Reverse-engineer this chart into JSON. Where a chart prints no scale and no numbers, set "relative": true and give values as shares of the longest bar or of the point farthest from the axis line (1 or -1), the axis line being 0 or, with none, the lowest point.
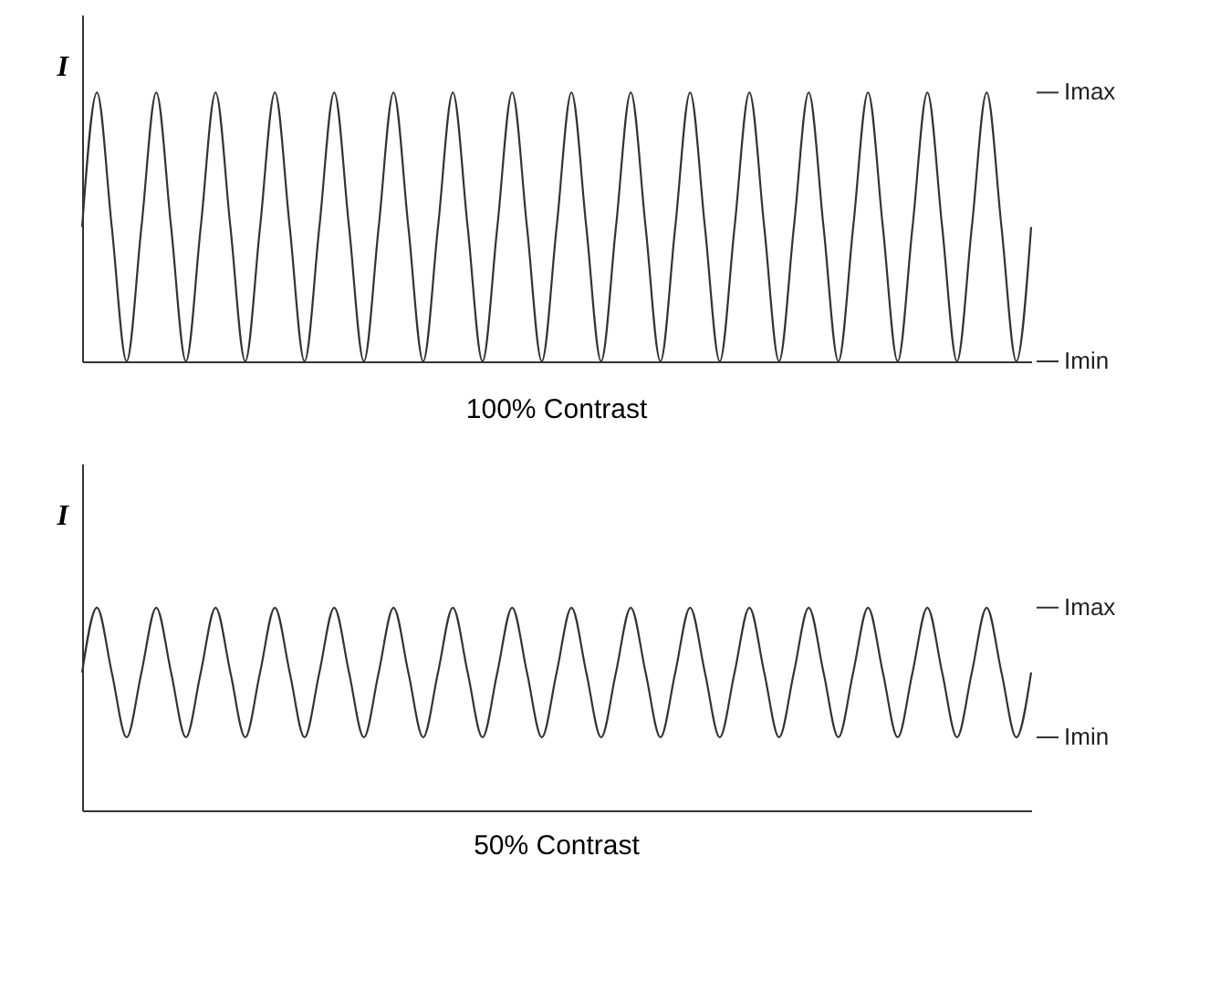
{
  "chart_data": [
    {
      "type": "line",
      "title": "100% Contrast",
      "ylabel": "I",
      "relative": true,
      "tick_labels": false,
      "grid": false,
      "marker": "none",
      "line_style": "solid",
      "categories": [
        null,
        null,
        null,
        null,
        null,
        null,
        null,
        null,
        null,
        null,
        null,
        null,
        null,
        null,
        null,
        null,
        null,
        null,
        null,
        null,
        null,
        null,
        null,
        null,
        null,
        null,
        null,
        null,
        null,
        null,
        null,
        null,
        null,
        null,
        null,
        null,
        null,
        null,
        null,
        null,
        null,
        null,
        null,
        null,
        null,
        null,
        null,
        null,
        null,
        null,
        null,
        null,
        null,
        null,
        null,
        null,
        null,
        null,
        null,
        null,
        null,
        null,
        null,
        null,
        null
      ],
      "series": [
        {
          "color": "#333333",
          "values": [
            0.5,
            1,
            0.5,
            0,
            0.5,
            1,
            0.5,
            0,
            0.5,
            1,
            0.5,
            0,
            0.5,
            1,
            0.5,
            0,
            0.5,
            1,
            0.5,
            0,
            0.5,
            1,
            0.5,
            0,
            0.5,
            1,
            0.5,
            0,
            0.5,
            1,
            0.5,
            0,
            0.5,
            1,
            0.5,
            0,
            0.5,
            1,
            0.5,
            0,
            0.5,
            1,
            0.5,
            0,
            0.5,
            1,
            0.5,
            0,
            0.5,
            1,
            0.5,
            0,
            0.5,
            1,
            0.5,
            0,
            0.5,
            1,
            0.5,
            0,
            0.5,
            1,
            0.5,
            0,
            0.5
          ]
        }
      ],
      "annotations": [
        "Imax",
        "Imin"
      ]
    },
    {
      "type": "line",
      "title": "50% Contrast",
      "ylabel": "I",
      "relative": true,
      "tick_labels": false,
      "grid": false,
      "marker": "none",
      "line_style": "solid",
      "categories": [
        null,
        null,
        null,
        null,
        null,
        null,
        null,
        null,
        null,
        null,
        null,
        null,
        null,
        null,
        null,
        null,
        null,
        null,
        null,
        null,
        null,
        null,
        null,
        null,
        null,
        null,
        null,
        null,
        null,
        null,
        null,
        null,
        null,
        null,
        null,
        null,
        null,
        null,
        null,
        null,
        null,
        null,
        null,
        null,
        null,
        null,
        null,
        null,
        null,
        null,
        null,
        null,
        null,
        null,
        null,
        null,
        null,
        null,
        null,
        null,
        null,
        null,
        null,
        null,
        null
      ],
      "series": [
        {
          "color": "#333333",
          "values": [
            0.68,
            1,
            0.68,
            0.36,
            0.68,
            1,
            0.68,
            0.36,
            0.68,
            1,
            0.68,
            0.36,
            0.68,
            1,
            0.68,
            0.36,
            0.68,
            1,
            0.68,
            0.36,
            0.68,
            1,
            0.68,
            0.36,
            0.68,
            1,
            0.68,
            0.36,
            0.68,
            1,
            0.68,
            0.36,
            0.68,
            1,
            0.68,
            0.36,
            0.68,
            1,
            0.68,
            0.36,
            0.68,
            1,
            0.68,
            0.36,
            0.68,
            1,
            0.68,
            0.36,
            0.68,
            1,
            0.68,
            0.36,
            0.68,
            1,
            0.68,
            0.36,
            0.68,
            1,
            0.68,
            0.36,
            0.68,
            1,
            0.68,
            0.36,
            0.68
          ]
        }
      ],
      "annotations": [
        "Imax",
        "Imin"
      ]
    }
  ]
}
